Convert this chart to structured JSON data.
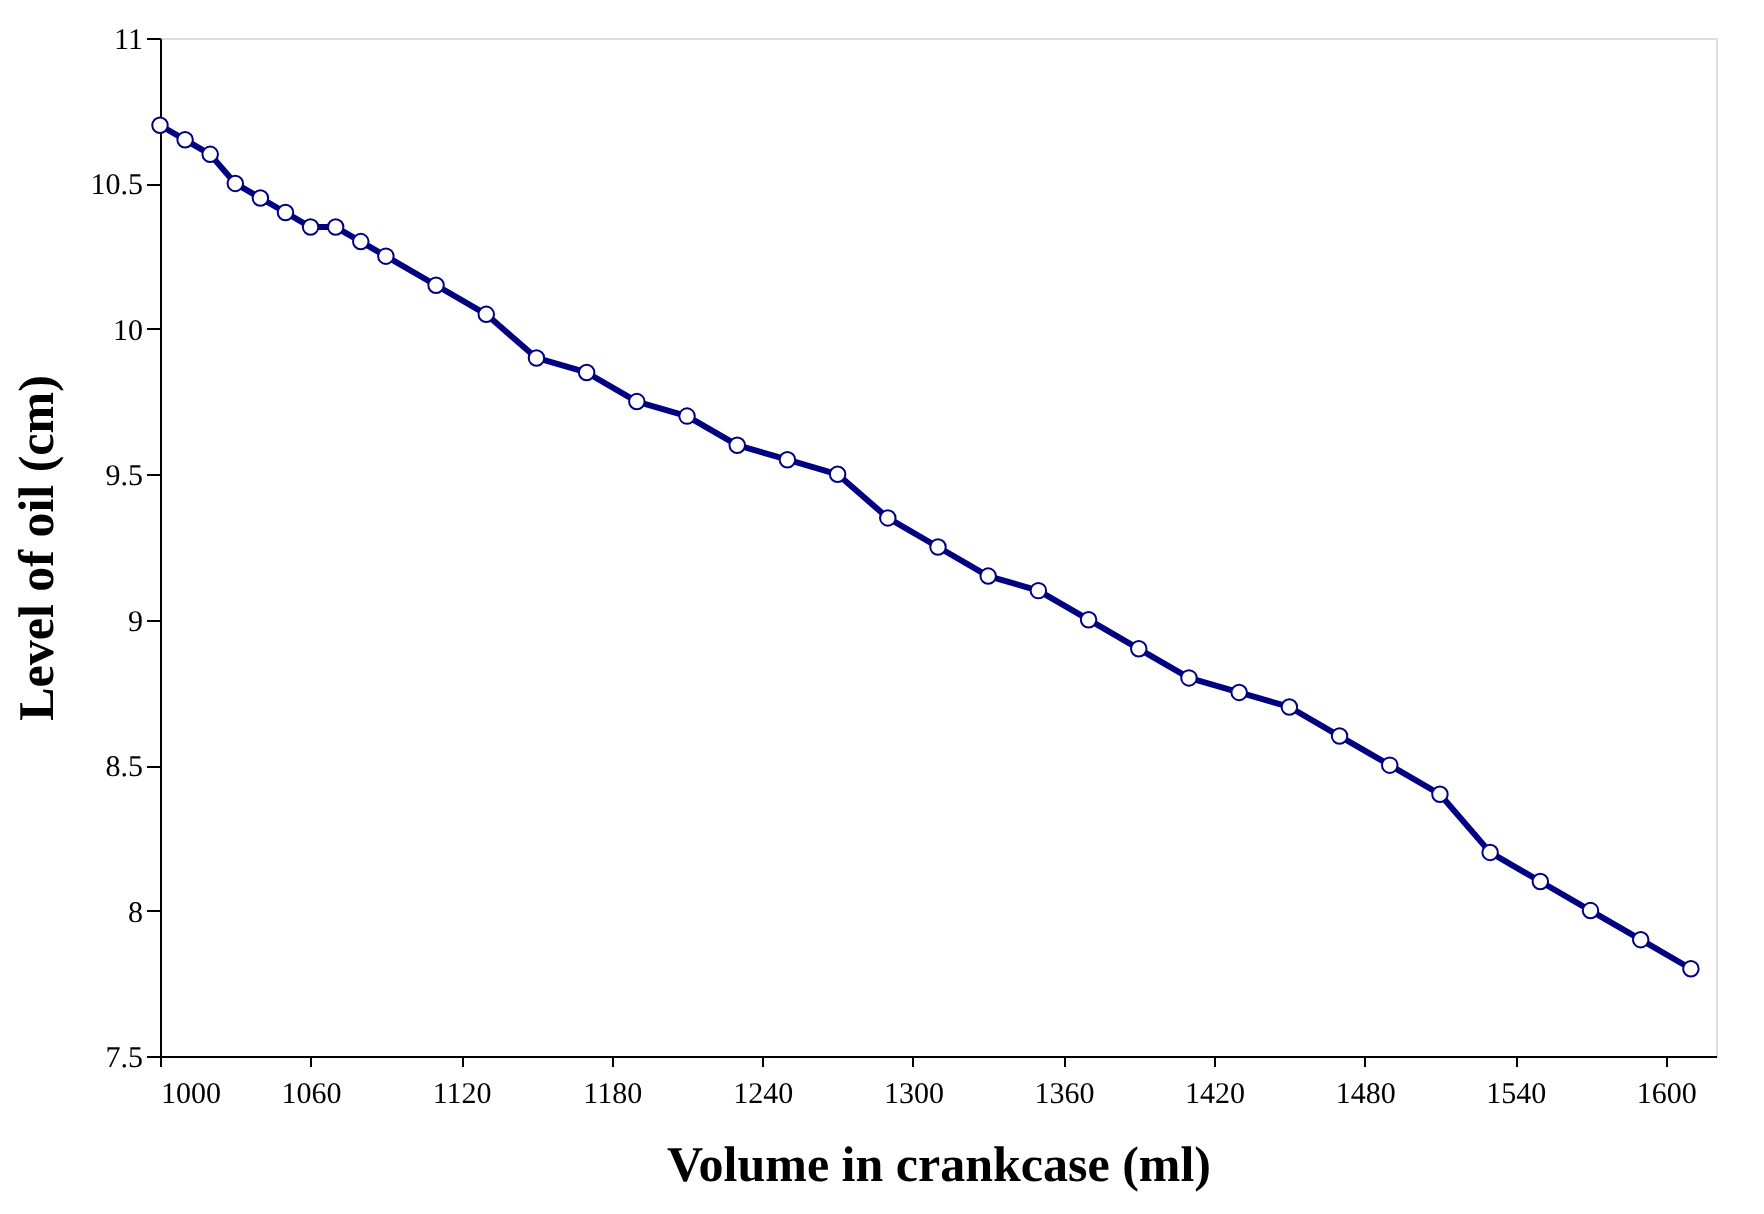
{
  "chart_data": {
    "type": "line",
    "xlabel": "Volume in crankcase (ml)",
    "ylabel": "Level of oil (cm)",
    "x": [
      1000,
      1010,
      1020,
      1030,
      1040,
      1050,
      1060,
      1070,
      1080,
      1090,
      1110,
      1130,
      1150,
      1170,
      1190,
      1210,
      1230,
      1250,
      1270,
      1290,
      1310,
      1330,
      1350,
      1370,
      1390,
      1410,
      1430,
      1450,
      1470,
      1490,
      1510,
      1530,
      1550,
      1570,
      1590,
      1610
    ],
    "series": [
      {
        "color": "#000080",
        "values": [
          10.7,
          10.65,
          10.6,
          10.5,
          10.45,
          10.4,
          10.35,
          10.35,
          10.3,
          10.25,
          10.15,
          10.05,
          9.9,
          9.85,
          9.75,
          9.7,
          9.6,
          9.55,
          9.5,
          9.35,
          9.25,
          9.15,
          9.1,
          9.0,
          8.9,
          8.8,
          8.75,
          8.7,
          8.6,
          8.5,
          8.4,
          8.2,
          8.1,
          8.0,
          7.9,
          7.8
        ]
      }
    ],
    "xlim": [
      1000,
      1620
    ],
    "xticks": [
      1000,
      1060,
      1120,
      1180,
      1240,
      1300,
      1360,
      1420,
      1480,
      1540,
      1600
    ],
    "ylim": [
      7.5,
      11
    ],
    "yticks": [
      7.5,
      8,
      8.5,
      9,
      9.5,
      10,
      10.5,
      11
    ],
    "grid": false,
    "marker": "circle",
    "line_style": "solid"
  }
}
